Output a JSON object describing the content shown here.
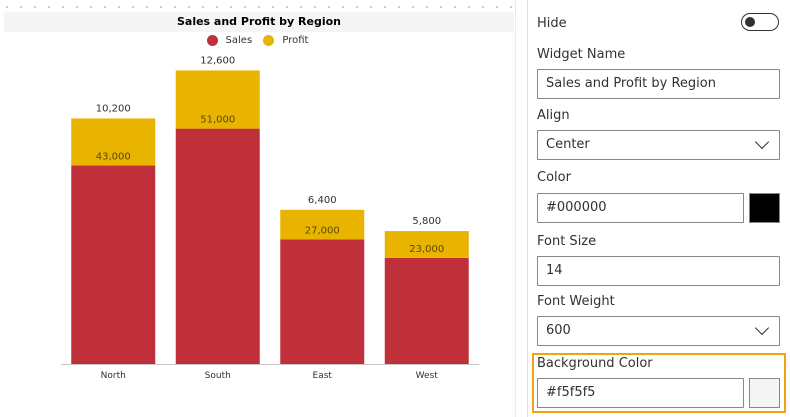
{
  "chart": {
    "title": "Sales and Profit by Region",
    "colors": {
      "sales": "#c0303a",
      "profit": "#e8b400",
      "header_bg": "#f5f5f5"
    }
  },
  "chart_data": {
    "type": "bar",
    "stacked": true,
    "title": "Sales and Profit by Region",
    "categories": [
      "North",
      "South",
      "East",
      "West"
    ],
    "series": [
      {
        "name": "Sales",
        "values": [
          43000,
          51000,
          27000,
          23000
        ],
        "labels": [
          "43,000",
          "51,000",
          "27,000",
          "23,000"
        ],
        "color": "#c0303a"
      },
      {
        "name": "Profit",
        "values": [
          10200,
          12600,
          6400,
          5800
        ],
        "labels": [
          "10,200",
          "12,600",
          "6,400",
          "5,800"
        ],
        "color": "#e8b400"
      }
    ],
    "ylim": [
      0,
      65000
    ],
    "grid": false,
    "legend": "top-center"
  },
  "panel": {
    "hide_label": "Hide",
    "hide_on": false,
    "widget_name_label": "Widget Name",
    "widget_name_value": "Sales and Profit by Region",
    "align_label": "Align",
    "align_value": "Center",
    "color_label": "Color",
    "color_value": "#000000",
    "font_size_label": "Font Size",
    "font_size_value": "14",
    "font_weight_label": "Font Weight",
    "font_weight_value": "600",
    "bg_color_label": "Background Color",
    "bg_color_value": "#f5f5f5",
    "bg_color_text": "#f5f5f5"
  }
}
